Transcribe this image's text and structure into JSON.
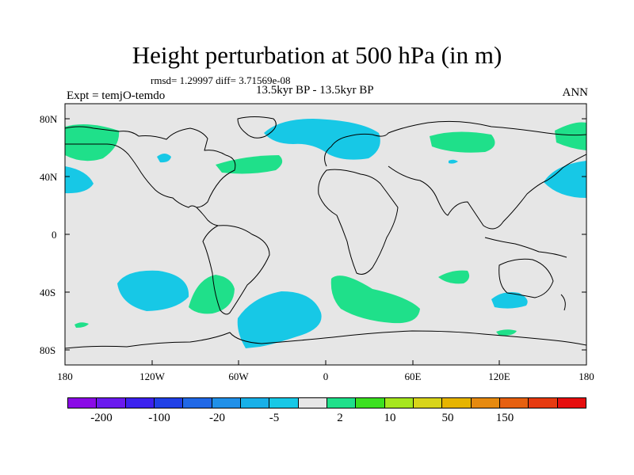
{
  "title": "Height perturbation at 500 hPa (in m)",
  "stats": "rmsd= 1.29997 diff= 3.71569e-08",
  "experiment": "Expt = temjO-temdo",
  "period": "13.5kyr BP - 13.5kyr BP",
  "season": "ANN",
  "map": {
    "lat_labels": [
      "80N",
      "40N",
      "0",
      "40S",
      "80S"
    ],
    "lon_labels": [
      "180",
      "120W",
      "60W",
      "0",
      "60E",
      "120E",
      "180"
    ],
    "ocean_color": "#e6e6e6",
    "positive_color": "#1fe08a",
    "negative_color": "#17c8e6"
  },
  "colorbar": {
    "colors": [
      "#8a0ae6",
      "#6a1aee",
      "#3c22ee",
      "#2040e6",
      "#2068e6",
      "#2090e8",
      "#18b0e8",
      "#18c8e6",
      "#e6e6e6",
      "#1fe08a",
      "#3ce020",
      "#a6e61e",
      "#d8d41a",
      "#e6b400",
      "#e68a10",
      "#e66010",
      "#e63a10",
      "#e60e0e"
    ],
    "labels": [
      "-200",
      "-100",
      "-20",
      "-5",
      "2",
      "10",
      "50",
      "150"
    ]
  }
}
